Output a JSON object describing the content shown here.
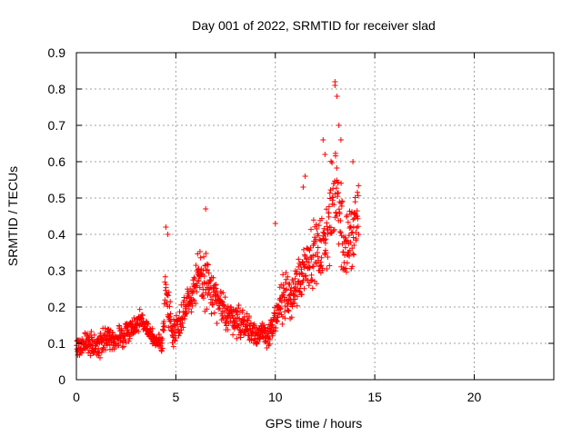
{
  "chart_data": {
    "type": "scatter",
    "title": "Day 001 of 2022, SRMTID for receiver slad",
    "xlabel": "GPS time / hours",
    "ylabel": "SRMTID / TECUs",
    "xlim": [
      0,
      24
    ],
    "ylim": [
      0,
      0.9
    ],
    "xticks": [
      0,
      5,
      10,
      15,
      20
    ],
    "yticks": [
      0,
      0.1,
      0.2,
      0.3,
      0.4,
      0.5,
      0.6,
      0.7,
      0.8,
      0.9
    ],
    "xtick_labels": [
      "0",
      "5",
      "10",
      "15",
      "20"
    ],
    "ytick_labels": [
      "0",
      "0.1",
      "0.2",
      "0.3",
      "0.4",
      "0.5",
      "0.6",
      "0.7",
      "0.8",
      "0.9"
    ],
    "grid": true,
    "marker": "+",
    "series_color": "#ff0000",
    "data_extent_hours": [
      0,
      14.2
    ],
    "trend": [
      {
        "x": 0.0,
        "y": 0.09,
        "spread": 0.03
      },
      {
        "x": 0.5,
        "y": 0.1,
        "spread": 0.035
      },
      {
        "x": 1.0,
        "y": 0.09,
        "spread": 0.035
      },
      {
        "x": 1.5,
        "y": 0.11,
        "spread": 0.04
      },
      {
        "x": 2.0,
        "y": 0.11,
        "spread": 0.035
      },
      {
        "x": 2.5,
        "y": 0.13,
        "spread": 0.03
      },
      {
        "x": 3.0,
        "y": 0.15,
        "spread": 0.03
      },
      {
        "x": 3.3,
        "y": 0.17,
        "spread": 0.03
      },
      {
        "x": 3.7,
        "y": 0.13,
        "spread": 0.03
      },
      {
        "x": 4.0,
        "y": 0.1,
        "spread": 0.03
      },
      {
        "x": 4.3,
        "y": 0.1,
        "spread": 0.03
      },
      {
        "x": 4.5,
        "y": 0.25,
        "spread": 0.08
      },
      {
        "x": 4.8,
        "y": 0.13,
        "spread": 0.04
      },
      {
        "x": 5.2,
        "y": 0.16,
        "spread": 0.05
      },
      {
        "x": 5.6,
        "y": 0.22,
        "spread": 0.05
      },
      {
        "x": 6.0,
        "y": 0.26,
        "spread": 0.07
      },
      {
        "x": 6.4,
        "y": 0.28,
        "spread": 0.09
      },
      {
        "x": 6.8,
        "y": 0.24,
        "spread": 0.07
      },
      {
        "x": 7.2,
        "y": 0.2,
        "spread": 0.05
      },
      {
        "x": 7.6,
        "y": 0.18,
        "spread": 0.05
      },
      {
        "x": 8.0,
        "y": 0.17,
        "spread": 0.05
      },
      {
        "x": 8.5,
        "y": 0.15,
        "spread": 0.05
      },
      {
        "x": 9.0,
        "y": 0.13,
        "spread": 0.04
      },
      {
        "x": 9.5,
        "y": 0.12,
        "spread": 0.04
      },
      {
        "x": 10.0,
        "y": 0.15,
        "spread": 0.05
      },
      {
        "x": 10.4,
        "y": 0.24,
        "spread": 0.07
      },
      {
        "x": 10.8,
        "y": 0.22,
        "spread": 0.07
      },
      {
        "x": 11.2,
        "y": 0.28,
        "spread": 0.08
      },
      {
        "x": 11.6,
        "y": 0.33,
        "spread": 0.08
      },
      {
        "x": 12.0,
        "y": 0.35,
        "spread": 0.09
      },
      {
        "x": 12.4,
        "y": 0.36,
        "spread": 0.1
      },
      {
        "x": 12.8,
        "y": 0.45,
        "spread": 0.14
      },
      {
        "x": 13.1,
        "y": 0.55,
        "spread": 0.15
      },
      {
        "x": 13.4,
        "y": 0.38,
        "spread": 0.13
      },
      {
        "x": 13.8,
        "y": 0.38,
        "spread": 0.13
      },
      {
        "x": 14.2,
        "y": 0.45,
        "spread": 0.12
      }
    ],
    "notable_points": [
      {
        "x": 4.5,
        "y": 0.42
      },
      {
        "x": 4.6,
        "y": 0.4
      },
      {
        "x": 6.5,
        "y": 0.47
      },
      {
        "x": 10.0,
        "y": 0.43
      },
      {
        "x": 11.4,
        "y": 0.53
      },
      {
        "x": 11.5,
        "y": 0.56
      },
      {
        "x": 12.4,
        "y": 0.66
      },
      {
        "x": 12.5,
        "y": 0.62
      },
      {
        "x": 13.0,
        "y": 0.82
      },
      {
        "x": 13.0,
        "y": 0.81
      },
      {
        "x": 13.1,
        "y": 0.78
      },
      {
        "x": 13.2,
        "y": 0.7
      },
      {
        "x": 13.3,
        "y": 0.66
      },
      {
        "x": 13.9,
        "y": 0.6
      }
    ],
    "points_per_hour": 80
  }
}
